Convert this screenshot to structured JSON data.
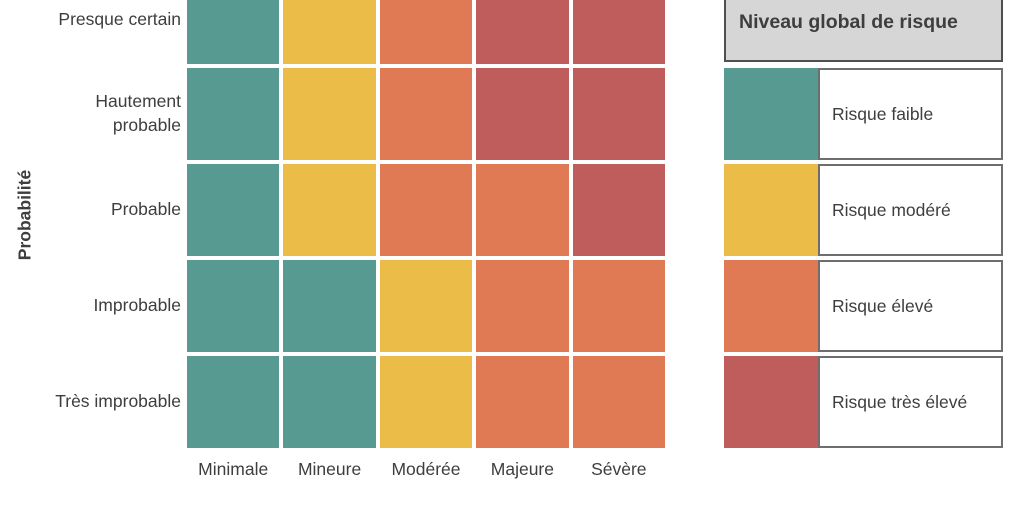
{
  "chart_data": {
    "type": "heatmap",
    "title": "",
    "xlabel": "",
    "ylabel": "Probabilité",
    "x_categories": [
      "Minimale",
      "Mineure",
      "Modérée",
      "Majeure",
      "Sévère"
    ],
    "y_categories": [
      "Presque certain",
      "Hautement probable",
      "Probable",
      "Improbable",
      "Très improbable"
    ],
    "matrix": [
      [
        "faible",
        "modéré",
        "élevé",
        "très élevé",
        "très élevé"
      ],
      [
        "faible",
        "modéré",
        "élevé",
        "très élevé",
        "très élevé"
      ],
      [
        "faible",
        "modéré",
        "élevé",
        "élevé",
        "très élevé"
      ],
      [
        "faible",
        "faible",
        "modéré",
        "élevé",
        "élevé"
      ],
      [
        "faible",
        "faible",
        "modéré",
        "élevé",
        "élevé"
      ]
    ],
    "level_colors": {
      "faible": "#579a92",
      "modéré": "#ecbc49",
      "élevé": "#df7a55",
      "très élevé": "#bf5c5c"
    },
    "grid_gap_color": "#ffffff",
    "legend_position": "right"
  },
  "legend": {
    "title": "Niveau global de risque",
    "items": [
      {
        "label": "Risque faible",
        "color": "#579a92"
      },
      {
        "label": "Risque modéré",
        "color": "#ecbc49"
      },
      {
        "label": "Risque élevé",
        "color": "#df7a55"
      },
      {
        "label": "Risque très élevé",
        "color": "#bf5c5c"
      }
    ]
  },
  "colors": {
    "text": "#3e3e3e",
    "legend_header_bg": "#d6d6d6",
    "legend_header_border": "#4f4f4f",
    "legend_item_border": "#6e6e6e",
    "background": "#ffffff"
  }
}
